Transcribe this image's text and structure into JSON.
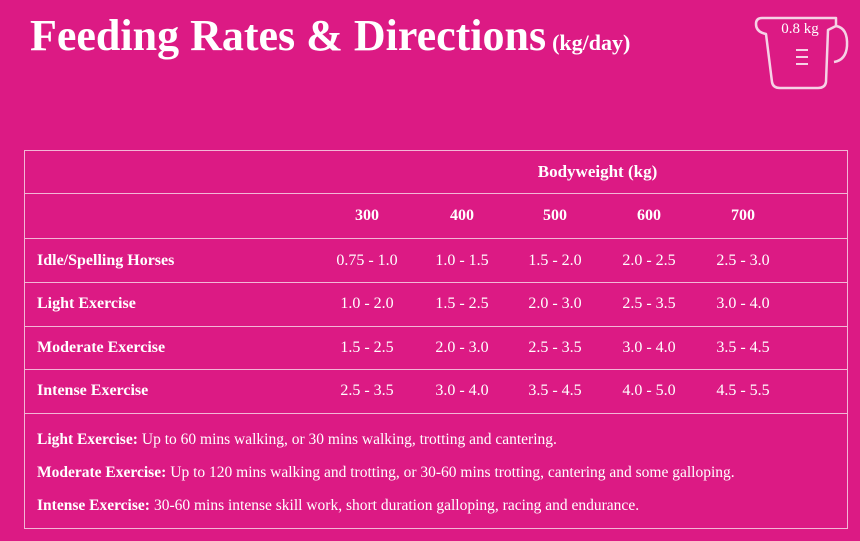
{
  "header": {
    "title": "Feeding Rates & Directions",
    "unit": "(kg/day)",
    "icon_label": "0.8 kg"
  },
  "table": {
    "group_header": "Bodyweight (kg)",
    "columns": [
      "300",
      "400",
      "500",
      "600",
      "700"
    ],
    "rows": [
      {
        "label": "Idle/Spelling Horses",
        "values": [
          "0.75 - 1.0",
          "1.0 - 1.5",
          "1.5 - 2.0",
          "2.0 - 2.5",
          "2.5 - 3.0"
        ]
      },
      {
        "label": "Light Exercise",
        "values": [
          "1.0 - 2.0",
          "1.5 - 2.5",
          "2.0 - 3.0",
          "2.5 - 3.5",
          "3.0 - 4.0"
        ]
      },
      {
        "label": "Moderate Exercise",
        "values": [
          "1.5 - 2.5",
          "2.0 - 3.0",
          "2.5 - 3.5",
          "3.0 - 4.0",
          "3.5 - 4.5"
        ]
      },
      {
        "label": "Intense Exercise",
        "values": [
          "2.5 - 3.5",
          "3.0 - 4.0",
          "3.5 - 4.5",
          "4.0 - 5.0",
          "4.5 - 5.5"
        ]
      }
    ]
  },
  "notes": [
    {
      "term": "Light Exercise:",
      "text": "Up to 60 mins walking, or 30 mins walking, trotting and cantering."
    },
    {
      "term": "Moderate Exercise:",
      "text": "Up to 120 mins walking and trotting, or 30-60 mins trotting, cantering and some galloping."
    },
    {
      "term": "Intense Exercise:",
      "text": "30-60 mins intense skill work, short duration galloping, racing and endurance."
    }
  ]
}
